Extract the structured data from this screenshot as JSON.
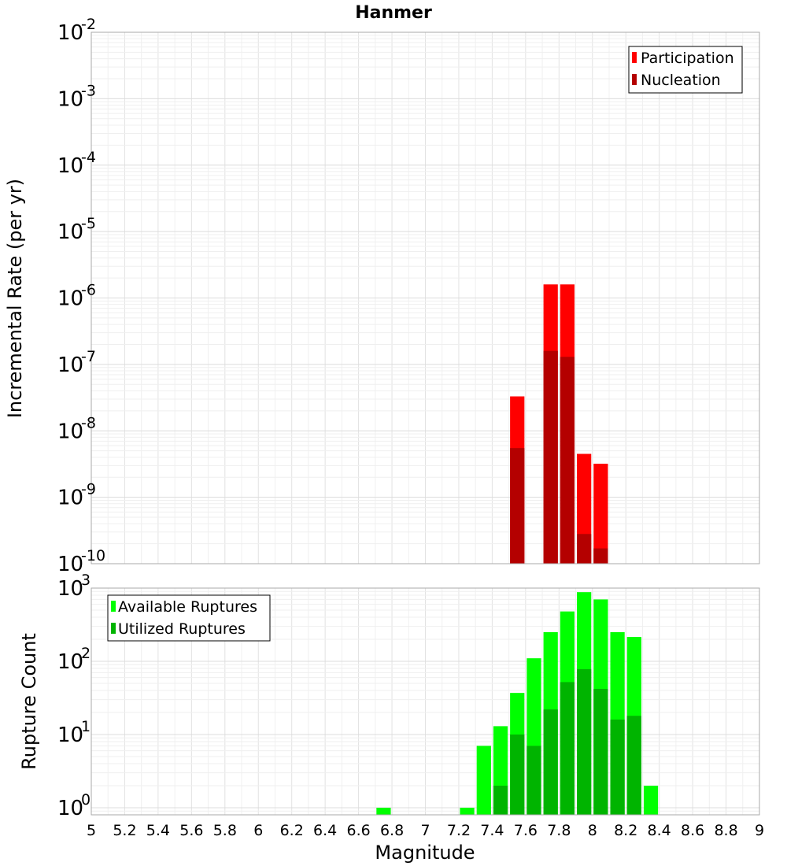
{
  "chart_data": [
    {
      "type": "bar",
      "title": "Hanmer",
      "xlabel": "",
      "ylabel": "Incremental Rate (per yr)",
      "yscale": "log",
      "xlim": [
        5,
        9
      ],
      "ylim": [
        1e-10,
        0.01
      ],
      "y_ticks": [
        {
          "base": "10",
          "exp": "-10"
        },
        {
          "base": "10",
          "exp": "-9"
        },
        {
          "base": "10",
          "exp": "-8"
        },
        {
          "base": "10",
          "exp": "-7"
        },
        {
          "base": "10",
          "exp": "-6"
        },
        {
          "base": "10",
          "exp": "-5"
        },
        {
          "base": "10",
          "exp": "-4"
        },
        {
          "base": "10",
          "exp": "-3"
        },
        {
          "base": "10",
          "exp": "-2"
        }
      ],
      "legend_position": "top-right",
      "bar_width": 0.1,
      "series": [
        {
          "name": "Participation",
          "color": "#ff0000",
          "points": [
            {
              "x": 7.55,
              "y": 3.3e-08
            },
            {
              "x": 7.75,
              "y": 1.6e-06
            },
            {
              "x": 7.85,
              "y": 1.6e-06
            },
            {
              "x": 7.95,
              "y": 4.5e-09
            },
            {
              "x": 8.05,
              "y": 3.2e-09
            }
          ]
        },
        {
          "name": "Nucleation",
          "color": "#b40000",
          "points": [
            {
              "x": 7.55,
              "y": 5.5e-09
            },
            {
              "x": 7.75,
              "y": 1.6e-07
            },
            {
              "x": 7.85,
              "y": 1.3e-07
            },
            {
              "x": 7.95,
              "y": 2.8e-10
            },
            {
              "x": 8.05,
              "y": 1.7e-10
            }
          ]
        }
      ]
    },
    {
      "type": "bar",
      "xlabel": "Magnitude",
      "ylabel": "Rupture Count",
      "yscale": "log",
      "xlim": [
        5,
        9
      ],
      "ylim": [
        0.8,
        1000
      ],
      "x_ticks": [
        "5",
        "5.2",
        "5.4",
        "5.6",
        "5.8",
        "6",
        "6.2",
        "6.4",
        "6.6",
        "6.8",
        "7",
        "7.2",
        "7.4",
        "7.6",
        "7.8",
        "8",
        "8.2",
        "8.4",
        "8.6",
        "8.8",
        "9"
      ],
      "y_ticks": [
        {
          "base": "10",
          "exp": "0"
        },
        {
          "base": "10",
          "exp": "1"
        },
        {
          "base": "10",
          "exp": "2"
        },
        {
          "base": "10",
          "exp": "3"
        }
      ],
      "legend_position": "top-left",
      "bar_width": 0.1,
      "series": [
        {
          "name": "Available Ruptures",
          "color": "#00ff00",
          "points": [
            {
              "x": 6.75,
              "y": 1
            },
            {
              "x": 7.25,
              "y": 1
            },
            {
              "x": 7.35,
              "y": 7
            },
            {
              "x": 7.45,
              "y": 13
            },
            {
              "x": 7.55,
              "y": 37
            },
            {
              "x": 7.65,
              "y": 110
            },
            {
              "x": 7.75,
              "y": 250
            },
            {
              "x": 7.85,
              "y": 480
            },
            {
              "x": 7.95,
              "y": 880
            },
            {
              "x": 8.05,
              "y": 700
            },
            {
              "x": 8.15,
              "y": 250
            },
            {
              "x": 8.25,
              "y": 215
            },
            {
              "x": 8.35,
              "y": 2
            }
          ]
        },
        {
          "name": "Utilized Ruptures",
          "color": "#00b400",
          "points": [
            {
              "x": 7.45,
              "y": 2
            },
            {
              "x": 7.55,
              "y": 10
            },
            {
              "x": 7.65,
              "y": 7
            },
            {
              "x": 7.75,
              "y": 22
            },
            {
              "x": 7.85,
              "y": 52
            },
            {
              "x": 7.95,
              "y": 78
            },
            {
              "x": 8.05,
              "y": 42
            },
            {
              "x": 8.15,
              "y": 16
            },
            {
              "x": 8.25,
              "y": 18
            }
          ]
        }
      ]
    }
  ]
}
